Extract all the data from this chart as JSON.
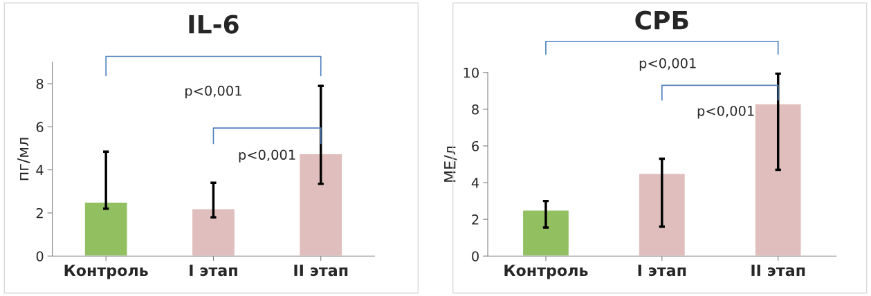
{
  "chart_data": [
    {
      "type": "bar",
      "title": "IL-6",
      "ylabel": "пг/мл",
      "categories": [
        "Контроль",
        "I этап",
        "II этап"
      ],
      "values": [
        2.5,
        2.2,
        4.75
      ],
      "colors": [
        "#92d050",
        "#e6b9b8",
        "#e6b9b8"
      ],
      "errors": [
        [
          2.2,
          4.85
        ],
        [
          1.8,
          3.4
        ],
        [
          3.35,
          7.9
        ]
      ],
      "ylim": [
        0,
        9
      ],
      "yticks": [
        0,
        2,
        4,
        6,
        8
      ],
      "annotations": [
        "p<0,001",
        "p<0,001"
      ]
    },
    {
      "type": "bar",
      "title": "СРБ",
      "ylabel": "МЕ/л",
      "categories": [
        "Контроль",
        "I этап",
        "II этап"
      ],
      "values": [
        2.5,
        4.5,
        8.3
      ],
      "colors": [
        "#92d050",
        "#e6b9b8",
        "#e6b9b8"
      ],
      "errors": [
        [
          1.55,
          3.0
        ],
        [
          1.6,
          5.3
        ],
        [
          4.7,
          9.95
        ]
      ],
      "ylim": [
        0,
        10
      ],
      "yticks": [
        0,
        2,
        4,
        6,
        8,
        10
      ],
      "annotations": [
        "p<0,001",
        "p<0,001"
      ]
    }
  ]
}
